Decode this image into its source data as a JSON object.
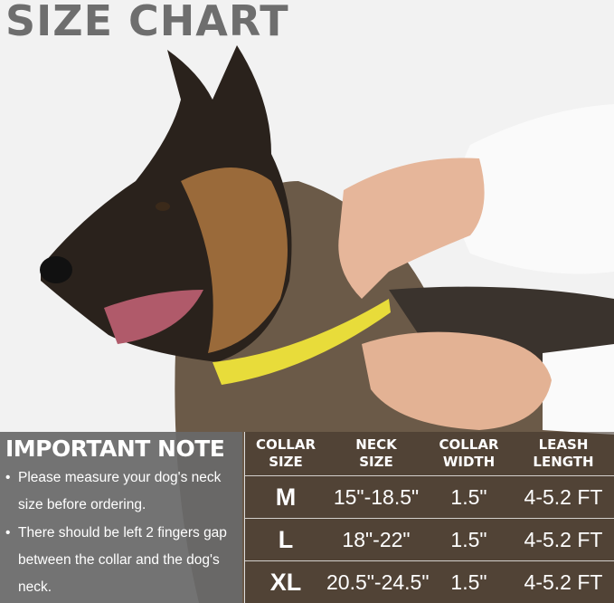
{
  "title": "SIZE CHART",
  "important_note": {
    "heading": "IMPORTANT NOTE",
    "bullets": [
      "Please measure your dog's neck size before ordering.",
      "There should be left 2 fingers gap between the collar and the dog's neck."
    ]
  },
  "size_table": {
    "headers": [
      [
        "COLLAR",
        "SIZE"
      ],
      [
        "NECK",
        "SIZE"
      ],
      [
        "COLLAR",
        "WIDTH"
      ],
      [
        "LEASH",
        "LENGTH"
      ]
    ],
    "rows": [
      {
        "size": "M",
        "neck": "15\"-18.5\"",
        "width": "1.5\"",
        "leash": "4-5.2 FT"
      },
      {
        "size": "L",
        "neck": "18\"-22\"",
        "width": "1.5\"",
        "leash": "4-5.2 FT"
      },
      {
        "size": "XL",
        "neck": "20.5\"-24.5\"",
        "width": "1.5\"",
        "leash": "4-5.2 FT"
      }
    ]
  },
  "colors": {
    "title": "#6e6e6e",
    "tape": "#e8dc3a",
    "panel": "#696969"
  }
}
